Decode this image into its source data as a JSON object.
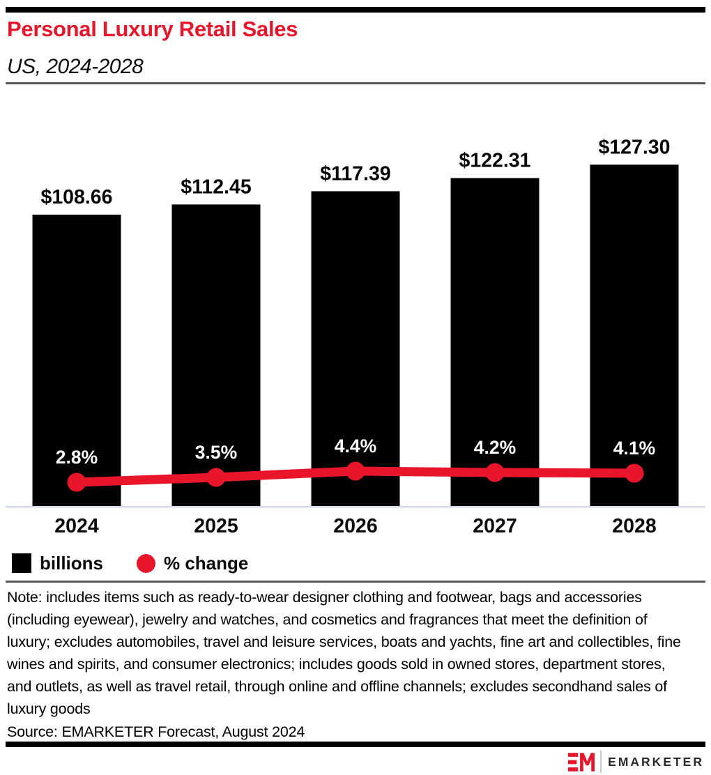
{
  "header": {
    "title": "Personal Luxury Retail Sales",
    "subtitle": "US, 2024-2028"
  },
  "chart_data": {
    "type": "bar",
    "title": "Personal Luxury Retail Sales",
    "subtitle": "US, 2024-2028",
    "categories": [
      "2024",
      "2025",
      "2026",
      "2027",
      "2028"
    ],
    "series": [
      {
        "name": "billions",
        "type": "bar",
        "color": "#000000",
        "values": [
          108.66,
          112.45,
          117.39,
          122.31,
          127.3
        ],
        "labels": [
          "$108.66",
          "$112.45",
          "$117.39",
          "$122.31",
          "$127.30"
        ]
      },
      {
        "name": "% change",
        "type": "line",
        "color": "#E8152B",
        "values": [
          2.8,
          3.5,
          4.4,
          4.2,
          4.1
        ],
        "labels": [
          "2.8%",
          "3.5%",
          "4.4%",
          "4.2%",
          "4.1%"
        ]
      }
    ],
    "ylim": [
      0,
      150
    ],
    "grid": false,
    "legend_position": "bottom-left"
  },
  "legend": {
    "items": [
      {
        "label": "billions",
        "swatch": "square",
        "color": "#000000"
      },
      {
        "label": "% change",
        "swatch": "circle",
        "color": "#E8152B"
      }
    ]
  },
  "notes": {
    "note": "Note: includes items such as ready-to-wear designer clothing and footwear, bags and accessories (including eyewear), jewelry and watches, and cosmetics and fragrances that meet the definition of luxury; excludes automobiles, travel and leisure services, boats and yachts, fine art and collectibles, fine wines and spirits, and consumer electronics; includes goods sold in owned stores, department stores, and outlets, as well as travel retail, through online and offline channels; excludes secondhand sales of luxury goods",
    "source": "Source: EMARKETER Forecast, August 2024"
  },
  "branding": {
    "logo_mark": "EM",
    "wordmark": "EMARKETER"
  },
  "colors": {
    "accent_red": "#E8152B",
    "bar_black": "#000000",
    "axis_line": "#D5DAE8",
    "rule_gray": "#55565A"
  }
}
